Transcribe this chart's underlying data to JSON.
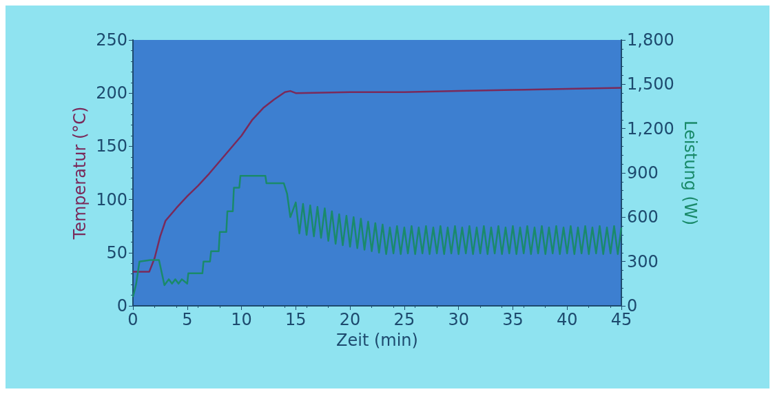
{
  "chart_data": {
    "type": "line",
    "xlabel": "Zeit (min)",
    "ylabel": "Temperatur (°C)",
    "y2label": "Leistung (W)",
    "xlim": [
      0,
      45
    ],
    "xticks": [
      0,
      5,
      10,
      15,
      20,
      25,
      30,
      35,
      40,
      45
    ],
    "ylim": [
      0,
      250
    ],
    "yticks": [
      0,
      50,
      100,
      150,
      200,
      250
    ],
    "y2lim": [
      0,
      1800
    ],
    "y2ticks": [
      0,
      300,
      600,
      900,
      {
        "value": 1200,
        "label": "1,200"
      },
      {
        "value": 1500,
        "label": "1,500"
      },
      {
        "value": 1800,
        "label": "1,800"
      }
    ],
    "grid": false,
    "marker": "none",
    "line_style": "solid",
    "series": [
      {
        "color": "#7a2a5a",
        "x": [
          0,
          1.5,
          2,
          2.5,
          3,
          4,
          5,
          6,
          7,
          8,
          9,
          10,
          11,
          12,
          13,
          14,
          14.5,
          15,
          20,
          25,
          30,
          35,
          40,
          45
        ],
        "values": [
          32,
          32,
          45,
          65,
          80,
          92,
          103,
          113,
          124,
          136,
          148,
          160,
          175,
          186,
          194,
          201,
          202,
          200,
          201,
          201,
          202,
          203,
          204,
          205
        ]
      },
      {
        "color": "#1a8a6a",
        "axis": "y2",
        "x": [
          0,
          0.3,
          0.6,
          1.6,
          2.4,
          2.9,
          3.3,
          3.6,
          3.9,
          4.2,
          4.5,
          5,
          5.1,
          6.4,
          6.5,
          7.1,
          7.2,
          7.9,
          8,
          8.6,
          8.7,
          9.2,
          9.3,
          9.8,
          9.9,
          12.2,
          12.3,
          13.9,
          14.2,
          14.5,
          15,
          15.33,
          15.67,
          16,
          16.33,
          16.67,
          17,
          17.33,
          17.67,
          18,
          18.33,
          18.67,
          19,
          19.33,
          19.67,
          20,
          20.33,
          20.67,
          21,
          21.33,
          21.67,
          22,
          22.33,
          22.67,
          23,
          23.33,
          23.67,
          24,
          24.33,
          24.67,
          25,
          25.33,
          25.67,
          26,
          26.33,
          26.67,
          27,
          27.33,
          27.67,
          28,
          28.33,
          28.67,
          29,
          29.33,
          29.67,
          30,
          30.33,
          30.67,
          31,
          31.33,
          31.67,
          32,
          32.33,
          32.67,
          33,
          33.33,
          33.67,
          34,
          34.33,
          34.67,
          35,
          35.33,
          35.67,
          36,
          36.33,
          36.67,
          37,
          37.33,
          37.67,
          38,
          38.33,
          38.67,
          39,
          39.33,
          39.67,
          40,
          40.33,
          40.67,
          41,
          41.33,
          41.67,
          42,
          42.33,
          42.67,
          43,
          43.33,
          43.67,
          44,
          44.33,
          44.67,
          45
        ],
        "values": [
          60,
          150,
          300,
          310,
          310,
          140,
          180,
          150,
          180,
          150,
          180,
          150,
          220,
          220,
          300,
          300,
          370,
          370,
          500,
          500,
          640,
          640,
          800,
          800,
          880,
          880,
          830,
          830,
          760,
          600,
          700,
          490,
          690,
          480,
          680,
          470,
          670,
          460,
          660,
          440,
          640,
          420,
          620,
          410,
          610,
          400,
          600,
          390,
          590,
          380,
          570,
          370,
          560,
          360,
          550,
          350,
          530,
          355,
          540,
          350,
          530,
          355,
          540,
          350,
          530,
          355,
          540,
          350,
          530,
          355,
          540,
          350,
          530,
          355,
          540,
          350,
          530,
          355,
          540,
          350,
          530,
          355,
          540,
          350,
          530,
          355,
          540,
          350,
          530,
          355,
          540,
          350,
          530,
          355,
          540,
          350,
          530,
          355,
          540,
          350,
          530,
          355,
          540,
          350,
          530,
          355,
          540,
          350,
          530,
          355,
          540,
          350,
          530,
          355,
          540,
          350,
          530,
          355,
          540,
          350,
          530
        ]
      }
    ]
  }
}
